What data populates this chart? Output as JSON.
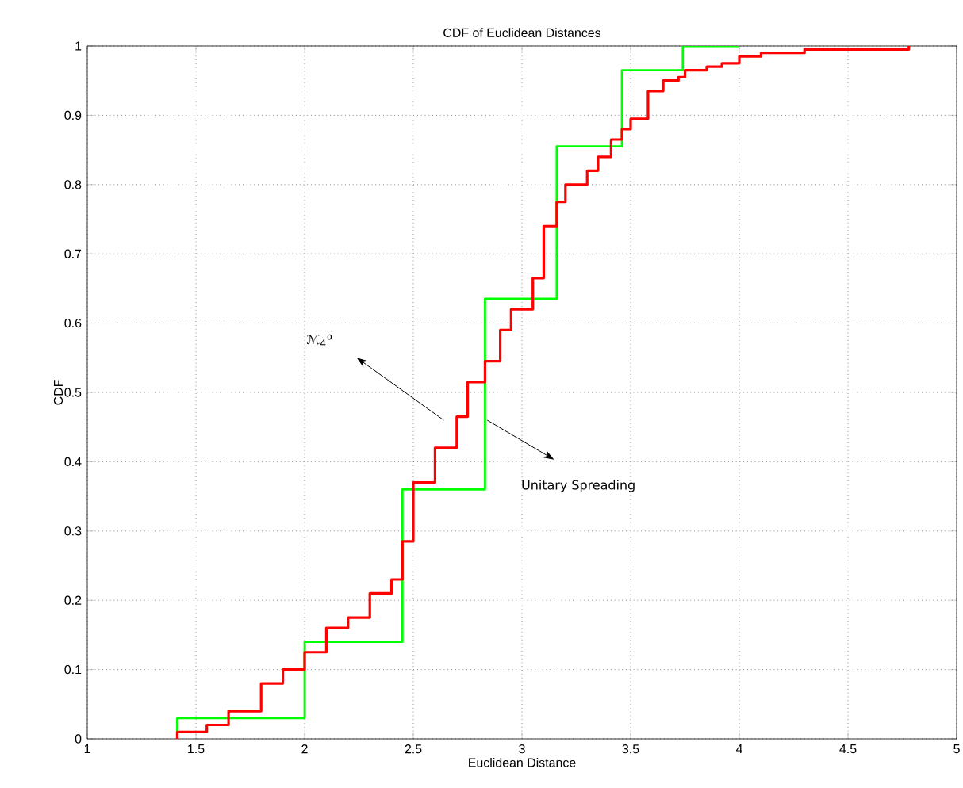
{
  "chart_data": {
    "type": "step",
    "title": "CDF of Euclidean Distances",
    "xlabel": "Euclidean Distance",
    "ylabel": "CDF",
    "xlim": [
      1,
      5
    ],
    "ylim": [
      0,
      1
    ],
    "xticks": [
      1,
      1.5,
      2,
      2.5,
      3,
      3.5,
      4,
      4.5,
      5
    ],
    "yticks": [
      0,
      0.1,
      0.2,
      0.3,
      0.4,
      0.5,
      0.6,
      0.7,
      0.8,
      0.9,
      1
    ],
    "grid": true,
    "line_style": "solid",
    "series": [
      {
        "color": "#00ff00",
        "x": [
          1.414,
          1.414,
          2.0,
          2.45,
          2.83,
          3.16,
          3.46,
          3.74,
          4.0
        ],
        "values": [
          0,
          0.03,
          0.14,
          0.36,
          0.635,
          0.855,
          0.965,
          1.0,
          1.0
        ]
      },
      {
        "color": "#ff0000",
        "x": [
          1.414,
          1.414,
          1.55,
          1.65,
          1.8,
          1.9,
          2.0,
          2.1,
          2.2,
          2.3,
          2.4,
          2.45,
          2.5,
          2.6,
          2.7,
          2.75,
          2.83,
          2.9,
          2.95,
          3.05,
          3.1,
          3.16,
          3.2,
          3.3,
          3.35,
          3.41,
          3.46,
          3.5,
          3.58,
          3.65,
          3.72,
          3.75,
          3.85,
          3.92,
          4.0,
          4.1,
          4.3,
          4.78
        ],
        "values": [
          0,
          0.01,
          0.02,
          0.04,
          0.08,
          0.1,
          0.125,
          0.16,
          0.175,
          0.21,
          0.23,
          0.285,
          0.37,
          0.42,
          0.465,
          0.515,
          0.545,
          0.59,
          0.62,
          0.665,
          0.74,
          0.775,
          0.8,
          0.82,
          0.84,
          0.865,
          0.88,
          0.895,
          0.935,
          0.95,
          0.955,
          0.965,
          0.97,
          0.975,
          0.985,
          0.99,
          0.995,
          1.0
        ]
      }
    ],
    "annotations": [
      "ℳ$_{4}$$^{α}$",
      "Unitary Spreading"
    ]
  }
}
